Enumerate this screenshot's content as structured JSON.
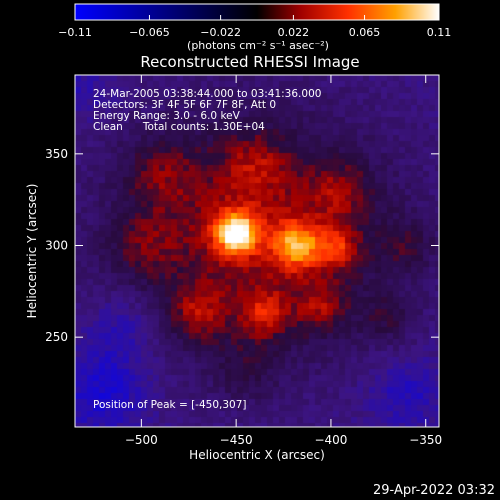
{
  "chart_data": {
    "type": "heatmap",
    "title": "Reconstructed RHESSI Image",
    "xlabel": "Heliocentric X (arcsec)",
    "ylabel": "Heliocentric Y (arcsec)",
    "xlim": [
      -535,
      -343
    ],
    "ylim": [
      201,
      393
    ],
    "x_ticks": [
      -500,
      -450,
      -400,
      -350
    ],
    "y_ticks": [
      250,
      300,
      350
    ],
    "x_tick_labels": [
      "−500",
      "−450",
      "−400",
      "−350"
    ],
    "y_tick_labels": [
      "250",
      "300",
      "350"
    ],
    "colorbar": {
      "range": [
        -0.11,
        0.11
      ],
      "ticks": [
        -0.11,
        -0.065,
        -0.022,
        0.022,
        0.065,
        0.11
      ],
      "tick_labels": [
        "−0.11",
        "−0.065",
        "−0.022",
        "0.022",
        "0.065",
        "0.11"
      ],
      "units_label": "(photons cm⁻² s⁻¹ asec⁻²)"
    },
    "annotations": {
      "time_range": "24-Mar-2005 03:38:44.000 to 03:41:36.000",
      "detectors": "Detectors: 3F 4F 5F 6F 7F 8F, Att 0",
      "energy": "Energy Range: 3.0 - 6.0 keV",
      "clean": "Clean      Total counts: 1.30E+04",
      "peak": "Position of Peak = [-450,307]"
    },
    "peak": [
      -450,
      307
    ],
    "sources": [
      {
        "x": -450,
        "y": 307,
        "amp": 0.11,
        "sigma": 8
      },
      {
        "x": -418,
        "y": 300,
        "amp": 0.075,
        "sigma": 9
      },
      {
        "x": -397,
        "y": 298,
        "amp": 0.05,
        "sigma": 8
      },
      {
        "x": -435,
        "y": 262,
        "amp": 0.045,
        "sigma": 9
      },
      {
        "x": -470,
        "y": 262,
        "amp": 0.04,
        "sigma": 10
      },
      {
        "x": -405,
        "y": 265,
        "amp": 0.035,
        "sigma": 9
      },
      {
        "x": -490,
        "y": 340,
        "amp": 0.03,
        "sigma": 14
      },
      {
        "x": -440,
        "y": 345,
        "amp": 0.03,
        "sigma": 12
      },
      {
        "x": -395,
        "y": 330,
        "amp": 0.03,
        "sigma": 12
      },
      {
        "x": -360,
        "y": 300,
        "amp": 0.028,
        "sigma": 10
      },
      {
        "x": -500,
        "y": 300,
        "amp": 0.025,
        "sigma": 12
      },
      {
        "x": -370,
        "y": 260,
        "amp": 0.025,
        "sigma": 10
      },
      {
        "x": -445,
        "y": 230,
        "amp": 0.022,
        "sigma": 12
      },
      {
        "x": -510,
        "y": 255,
        "amp": -0.03,
        "sigma": 14
      },
      {
        "x": -520,
        "y": 220,
        "amp": -0.04,
        "sigma": 16
      },
      {
        "x": -360,
        "y": 220,
        "amp": -0.03,
        "sigma": 14
      },
      {
        "x": -530,
        "y": 385,
        "amp": -0.02,
        "sigma": 12
      }
    ]
  },
  "footer": {
    "date": "29-Apr-2022 03:32"
  }
}
